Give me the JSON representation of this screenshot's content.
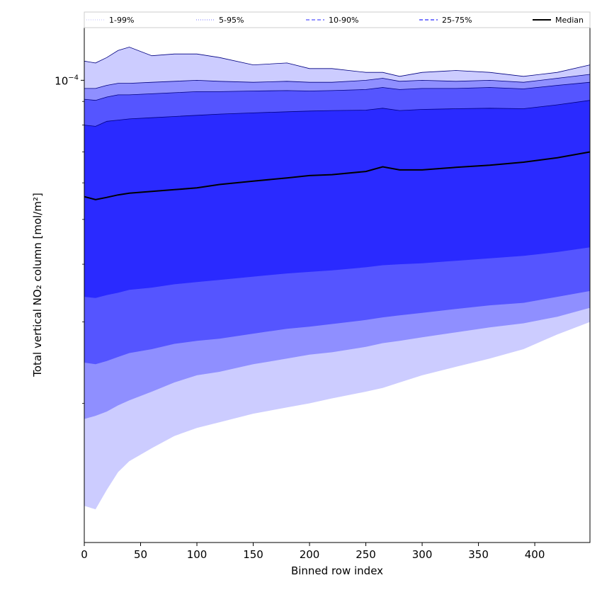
{
  "chart_data": {
    "type": "area",
    "xlabel": "Binned row index",
    "ylabel": "Total vertical NO₂ column [mol/m²]",
    "xlim": [
      0,
      449
    ],
    "ylim": [
      1e-05,
      0.00013
    ],
    "yscale": "log",
    "x_ticks": [
      0,
      50,
      100,
      150,
      200,
      250,
      300,
      350,
      400
    ],
    "y_ticks": [
      {
        "value": 0.0001,
        "base": "10",
        "exponent": "−4"
      }
    ],
    "grid": false,
    "legend": {
      "placement": "top",
      "entries": [
        {
          "label": "1-99%",
          "color": "#ccccff",
          "style": "dotted"
        },
        {
          "label": "5-95%",
          "color": "#8f8fff",
          "style": "dotted"
        },
        {
          "label": "10-90%",
          "color": "#5555ff",
          "style": "dashed"
        },
        {
          "label": "25-75%",
          "color": "#2a2aff",
          "style": "dashed"
        },
        {
          "label": "Median",
          "color": "#000000",
          "style": "solid"
        }
      ]
    },
    "x": [
      0,
      10,
      20,
      30,
      40,
      60,
      80,
      100,
      120,
      150,
      180,
      200,
      220,
      250,
      265,
      280,
      300,
      330,
      360,
      390,
      420,
      449
    ],
    "bands": [
      {
        "name": "1-99%",
        "color": "#ccccff",
        "low": [
          1.2e-05,
          1.18e-05,
          1.3e-05,
          1.42e-05,
          1.5e-05,
          1.6e-05,
          1.7e-05,
          1.77e-05,
          1.82e-05,
          1.9e-05,
          1.96e-05,
          2e-05,
          2.05e-05,
          2.12e-05,
          2.16e-05,
          2.22e-05,
          2.3e-05,
          2.4e-05,
          2.5e-05,
          2.62e-05,
          2.82e-05,
          3e-05
        ],
        "high": [
          0.00011,
          0.000109,
          0.000112,
          0.000116,
          0.000118,
          0.000113,
          0.000114,
          0.000114,
          0.000112,
          0.000108,
          0.000109,
          0.000106,
          0.000106,
          0.000104,
          0.000104,
          0.000102,
          0.000104,
          0.000105,
          0.000104,
          0.000102,
          0.000104,
          0.000108
        ]
      },
      {
        "name": "5-95%",
        "color": "#8f8fff",
        "low": [
          1.85e-05,
          1.88e-05,
          1.92e-05,
          1.98e-05,
          2.03e-05,
          2.12e-05,
          2.22e-05,
          2.3e-05,
          2.34e-05,
          2.43e-05,
          2.5e-05,
          2.55e-05,
          2.58e-05,
          2.65e-05,
          2.7e-05,
          2.73e-05,
          2.78e-05,
          2.85e-05,
          2.92e-05,
          2.98e-05,
          3.08e-05,
          3.22e-05
        ],
        "high": [
          9.6e-05,
          9.6e-05,
          9.75e-05,
          9.85e-05,
          9.85e-05,
          9.9e-05,
          9.95e-05,
          0.0001,
          9.95e-05,
          9.9e-05,
          9.95e-05,
          9.9e-05,
          9.9e-05,
          0.0001,
          0.000101,
          9.95e-05,
          0.0001,
          9.95e-05,
          0.0001,
          9.9e-05,
          0.000101,
          0.000103
        ]
      },
      {
        "name": "10-90%",
        "color": "#5555ff",
        "low": [
          2.45e-05,
          2.43e-05,
          2.47e-05,
          2.52e-05,
          2.57e-05,
          2.62e-05,
          2.69e-05,
          2.73e-05,
          2.76e-05,
          2.83e-05,
          2.9e-05,
          2.93e-05,
          2.97e-05,
          3.03e-05,
          3.07e-05,
          3.1e-05,
          3.14e-05,
          3.2e-05,
          3.26e-05,
          3.3e-05,
          3.4e-05,
          3.5e-05
        ],
        "high": [
          9.1e-05,
          9.05e-05,
          9.2e-05,
          9.3e-05,
          9.3e-05,
          9.35e-05,
          9.4e-05,
          9.45e-05,
          9.45e-05,
          9.48e-05,
          9.5e-05,
          9.48e-05,
          9.5e-05,
          9.55e-05,
          9.65e-05,
          9.55e-05,
          9.6e-05,
          9.6e-05,
          9.65e-05,
          9.58e-05,
          9.75e-05,
          9.9e-05
        ]
      },
      {
        "name": "25-75%",
        "color": "#2a2aff",
        "low": [
          3.4e-05,
          3.38e-05,
          3.43e-05,
          3.47e-05,
          3.52e-05,
          3.56e-05,
          3.62e-05,
          3.66e-05,
          3.7e-05,
          3.76e-05,
          3.82e-05,
          3.85e-05,
          3.88e-05,
          3.94e-05,
          3.98e-05,
          4e-05,
          4.02e-05,
          4.07e-05,
          4.12e-05,
          4.17e-05,
          4.25e-05,
          4.35e-05
        ],
        "high": [
          8e-05,
          7.95e-05,
          8.15e-05,
          8.2e-05,
          8.25e-05,
          8.3e-05,
          8.35e-05,
          8.4e-05,
          8.45e-05,
          8.5e-05,
          8.55e-05,
          8.58e-05,
          8.6e-05,
          8.62e-05,
          8.7e-05,
          8.6e-05,
          8.65e-05,
          8.68e-05,
          8.7e-05,
          8.68e-05,
          8.85e-05,
          9.05e-05
        ]
      }
    ],
    "median": {
      "name": "Median",
      "color": "#000000",
      "values": [
        5.6e-05,
        5.52e-05,
        5.58e-05,
        5.65e-05,
        5.7e-05,
        5.75e-05,
        5.8e-05,
        5.85e-05,
        5.95e-05,
        6.05e-05,
        6.15e-05,
        6.22e-05,
        6.25e-05,
        6.35e-05,
        6.5e-05,
        6.4e-05,
        6.4e-05,
        6.48e-05,
        6.55e-05,
        6.65e-05,
        6.8e-05,
        7e-05
      ]
    }
  }
}
